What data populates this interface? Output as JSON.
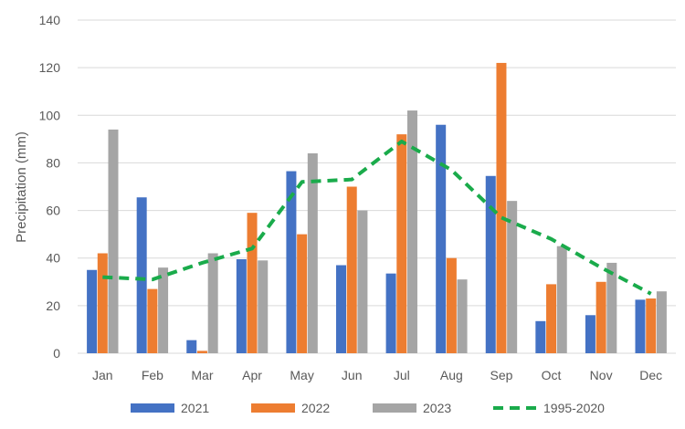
{
  "chart_data": {
    "type": "bar",
    "title": "",
    "xlabel": "",
    "ylabel": "Precipitation (mm)",
    "ylim": [
      0,
      140
    ],
    "yticks": [
      0,
      20,
      40,
      60,
      80,
      100,
      120,
      140
    ],
    "grid": true,
    "legend_position": "bottom",
    "categories": [
      "Jan",
      "Feb",
      "Mar",
      "Apr",
      "May",
      "Jun",
      "Jul",
      "Aug",
      "Sep",
      "Oct",
      "Nov",
      "Dec"
    ],
    "series": [
      {
        "name": "2021",
        "type": "bar",
        "color": "#4472C4",
        "values": [
          35,
          65.5,
          5.5,
          39.5,
          76.5,
          37,
          33.5,
          96,
          74.5,
          13.5,
          16,
          22.5
        ]
      },
      {
        "name": "2022",
        "type": "bar",
        "color": "#ED7D31",
        "values": [
          42,
          27,
          1,
          59,
          50,
          70,
          92,
          40,
          122,
          29,
          30,
          23
        ]
      },
      {
        "name": "2023",
        "type": "bar",
        "color": "#A5A5A5",
        "values": [
          94,
          36,
          42,
          39,
          84,
          60,
          102,
          31,
          64,
          45,
          38,
          26
        ]
      },
      {
        "name": "1995-2020",
        "type": "line",
        "style": "dashed",
        "color": "#1AAB4B",
        "values": [
          32,
          31,
          38,
          44,
          72,
          73,
          89,
          77,
          57,
          48,
          36,
          25
        ]
      }
    ]
  }
}
